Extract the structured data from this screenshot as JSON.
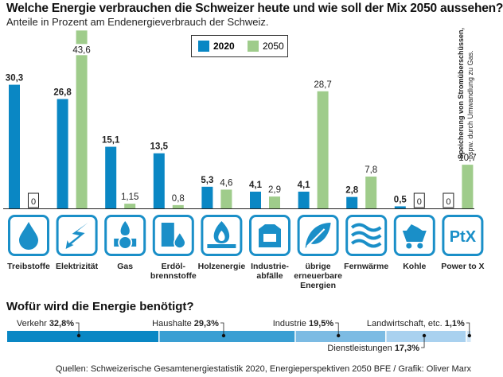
{
  "title": "Welche Energie verbrauchen die Schweizer heute und wie soll der Mix 2050 aussehen?",
  "subtitle": "Anteile in Prozent am Endenergieverbrauch der Schweiz.",
  "note_line1": "Speicherung von Stromüberschüssen,",
  "note_line2": "bspw. durch Umwandlung zu Gas.",
  "colors": {
    "y2020": "#0a87c4",
    "y2050": "#9fcc8b",
    "icon": "#1a8fc8"
  },
  "chart_data": {
    "type": "bar",
    "title": "Welche Energie verbrauchen die Schweizer heute und wie soll der Mix 2050 aussehen?",
    "ylabel": "Anteile in Prozent am Endenergieverbrauch der Schweiz.",
    "categories": [
      "Treibstoffe",
      "Elektrizität",
      "Gas",
      "Erdöl-\nbrennstoffe",
      "Holzenergie",
      "Industrie-\nabfälle",
      "übrige\nerneuerbare\nEnergien",
      "Fernwärme",
      "Kohle",
      "Power to X"
    ],
    "icons": [
      "fuel-drop-icon",
      "lightning-icon",
      "gas-flame-icon",
      "oil-barrel-icon",
      "wood-fire-icon",
      "waste-bag-icon",
      "leaf-icon",
      "heat-waves-icon",
      "coal-cart-icon",
      "ptx-icon"
    ],
    "series": [
      {
        "name": "2020",
        "values": [
          30.3,
          26.8,
          15.1,
          13.5,
          5.3,
          4.1,
          4.1,
          2.8,
          0.5,
          0
        ],
        "labels": [
          "30,3",
          "26,8",
          "15,1",
          "13,5",
          "5,3",
          "4,1",
          "4,1",
          "2,8",
          "0,5",
          "0"
        ]
      },
      {
        "name": "2050",
        "values": [
          0,
          43.6,
          1.15,
          0.8,
          4.6,
          2.9,
          28.7,
          7.8,
          0,
          10.7
        ],
        "labels": [
          "0",
          "43,6",
          "1,15",
          "0,8",
          "4,6",
          "2,9",
          "28,7",
          "7,8",
          "0",
          "10,7"
        ]
      }
    ],
    "legend_position": "top-center",
    "grid": false
  },
  "usage": {
    "title": "Wofür wird die Energie benötigt?",
    "segments": [
      {
        "name": "Verkehr",
        "value": 32.8,
        "label": "32,8%",
        "color": "#0a87c4"
      },
      {
        "name": "Haushalte",
        "value": 29.3,
        "label": "29,3%",
        "color": "#3a9fd3"
      },
      {
        "name": "Industrie",
        "value": 19.5,
        "label": "19,5%",
        "color": "#7cbbe3"
      },
      {
        "name": "Dienstleistungen",
        "value": 17.3,
        "label": "17,3%",
        "color": "#a9d1ef"
      },
      {
        "name": "Landwirtschaft, etc.",
        "value": 1.1,
        "label": "1,1%",
        "color": "#cfe5f6"
      }
    ]
  },
  "source": "Quellen: Schweizerische Gesamtenergiestatistik 2020, Energieperspektiven 2050 BFE / Grafik: Oliver Marx"
}
